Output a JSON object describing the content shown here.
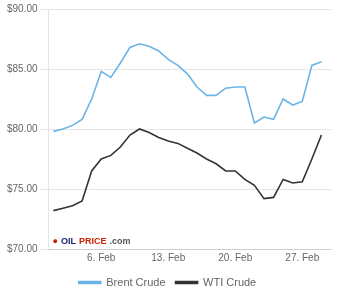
{
  "chart_data": {
    "type": "line",
    "x": [
      0,
      1,
      2,
      3,
      4,
      5,
      6,
      7,
      8,
      9,
      10,
      11,
      12,
      13,
      14,
      15,
      16,
      17,
      18,
      19,
      20,
      21,
      22,
      23,
      24,
      25,
      26,
      27,
      28
    ],
    "series": [
      {
        "name": "Brent Crude",
        "color": "#6ab4e8",
        "values": [
          79.8,
          80.0,
          80.3,
          80.8,
          82.5,
          84.8,
          84.3,
          85.5,
          86.8,
          87.1,
          86.9,
          86.5,
          85.8,
          85.3,
          84.6,
          83.5,
          82.8,
          82.8,
          83.4,
          83.5,
          83.5,
          80.5,
          81.0,
          80.8,
          82.5,
          82.0,
          82.3,
          85.3,
          85.6
        ]
      },
      {
        "name": "WTI Crude",
        "color": "#333333",
        "values": [
          73.2,
          73.4,
          73.6,
          74.0,
          76.5,
          77.5,
          77.8,
          78.5,
          79.5,
          80.0,
          79.7,
          79.3,
          79.0,
          78.8,
          78.4,
          78.0,
          77.5,
          77.1,
          76.5,
          76.5,
          75.8,
          75.3,
          74.2,
          74.3,
          75.8,
          75.5,
          75.6,
          77.5,
          79.5
        ]
      }
    ],
    "xlim": [
      -0.5,
      29
    ],
    "xticks": [
      {
        "value": 5,
        "label": "6. Feb"
      },
      {
        "value": 12,
        "label": "13. Feb"
      },
      {
        "value": 19,
        "label": "20. Feb"
      },
      {
        "value": 26,
        "label": "27. Feb"
      }
    ],
    "ylim": [
      70.0,
      90.0
    ],
    "yticks": [
      {
        "value": 70.0,
        "label": "$70.00"
      },
      {
        "value": 75.0,
        "label": "$75.00"
      },
      {
        "value": 80.0,
        "label": "$80.00"
      },
      {
        "value": 85.0,
        "label": "$85.00"
      },
      {
        "value": 90.0,
        "label": "$90.00"
      }
    ],
    "grid": "y",
    "legend": "bottom",
    "annotations": [
      {
        "text": "●",
        "color": "#cc2200"
      },
      {
        "text": "OIL",
        "color": "#1a1a6e"
      },
      {
        "text": "PRICE",
        "color": "#cc2200"
      },
      {
        "text": ".com",
        "color": "#555555"
      }
    ]
  }
}
